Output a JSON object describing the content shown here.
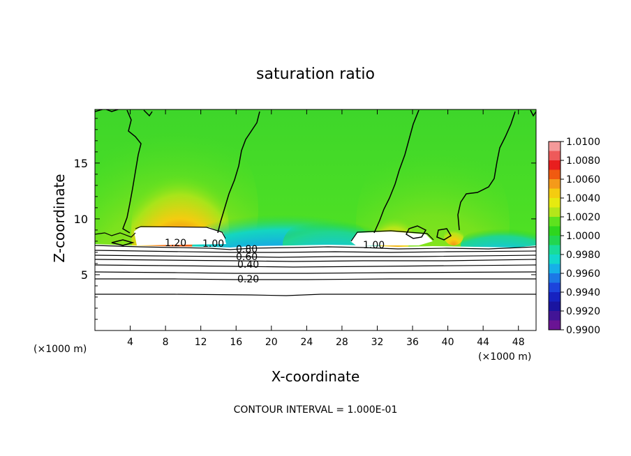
{
  "chart_data": {
    "type": "heatmap",
    "title": "saturation ratio",
    "xlabel": "X-coordinate",
    "ylabel": "Z-coordinate",
    "x_units": "(×1000 m)",
    "y_units": "(×1000 m)",
    "xlim": [
      0,
      50
    ],
    "ylim": [
      0,
      19.8
    ],
    "x_ticks": [
      4,
      8,
      12,
      16,
      20,
      24,
      28,
      32,
      36,
      40,
      44,
      48
    ],
    "y_ticks": [
      5,
      10,
      15
    ],
    "footer": "CONTOUR INTERVAL = 1.000E-01",
    "colorbar": {
      "ticks": [
        "1.0100",
        "1.0080",
        "1.0060",
        "1.0040",
        "1.0020",
        "1.0000",
        "0.9980",
        "0.9960",
        "0.9940",
        "0.9920",
        "0.9900"
      ],
      "colors": [
        "#f49a9a",
        "#ee5a5a",
        "#e81e1e",
        "#f05a10",
        "#f49a1a",
        "#f4cc10",
        "#e6ea10",
        "#b4e61a",
        "#5ee21e",
        "#2ed61e",
        "#22d650",
        "#18dc9a",
        "#12d8cc",
        "#16b0e8",
        "#1c78e6",
        "#1c44dc",
        "#1622c0",
        "#1a14a0",
        "#421496",
        "#6a1494"
      ]
    },
    "contour_labels": [
      "1.20",
      "1.00",
      "0.80",
      "0.60",
      "0.40",
      "0.20",
      "1.00"
    ],
    "grid": false,
    "legend": "colorbar right"
  }
}
